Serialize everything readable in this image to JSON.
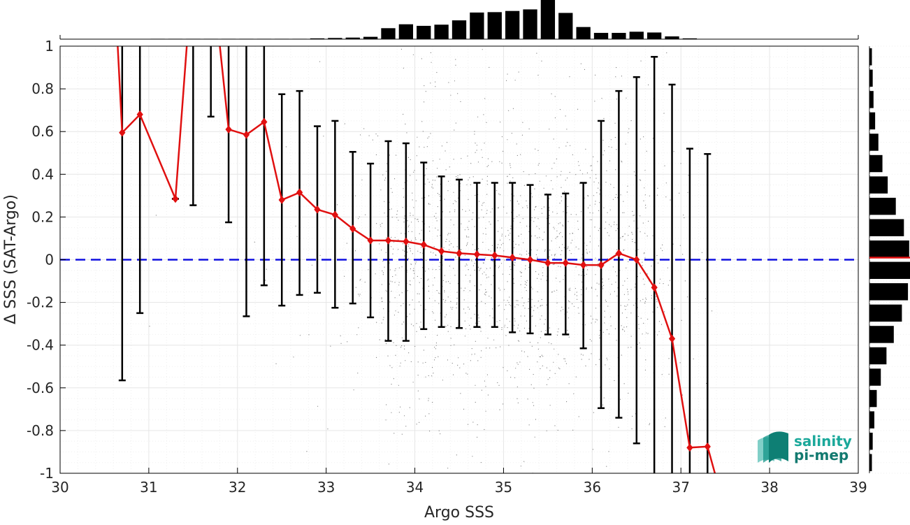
{
  "chart_data": {
    "type": "scatter",
    "title": "",
    "xlabel": "Argo SSS",
    "ylabel": "Δ SSS (SAT-Argo)",
    "xlim": [
      30,
      39
    ],
    "ylim": [
      -1,
      1
    ],
    "x_ticks": [
      "30",
      "31",
      "32",
      "33",
      "34",
      "35",
      "36",
      "37",
      "38",
      "39"
    ],
    "y_ticks": [
      "1",
      "0.8",
      "0.6",
      "0.4",
      "0.2",
      "0",
      "-0.2",
      "-0.4",
      "-0.6",
      "-0.8",
      "-1"
    ],
    "grid": true,
    "zero_line": {
      "y": 0,
      "color": "#1010e0",
      "style": "dashed"
    },
    "scatter_color": "#808080",
    "scatter_density_profile": {
      "x": [
        31.0,
        32.0,
        32.5,
        33.0,
        33.5,
        33.7,
        34.0,
        35.0,
        35.5,
        36.0,
        36.5,
        36.8,
        37.0,
        37.5
      ],
      "relative_density": [
        0.003,
        0.006,
        0.02,
        0.05,
        0.12,
        0.85,
        1.0,
        1.0,
        1.0,
        0.85,
        0.7,
        0.3,
        0.1,
        0.0
      ]
    },
    "series": [
      {
        "name": "",
        "color": "#e01010",
        "marker": "diamond",
        "x": [
          30.7,
          30.9,
          31.3,
          31.9,
          32.1,
          32.3,
          32.5,
          32.7,
          32.9,
          33.1,
          33.3,
          33.5,
          33.7,
          33.9,
          34.1,
          34.3,
          34.5,
          34.7,
          34.9,
          35.1,
          35.3,
          35.5,
          35.7,
          35.9,
          36.1,
          36.3,
          36.5,
          36.7,
          36.9,
          37.1,
          37.3
        ],
        "y": [
          0.595,
          0.68,
          0.285,
          0.61,
          0.585,
          0.645,
          0.28,
          0.315,
          0.235,
          0.21,
          0.145,
          0.09,
          0.09,
          0.085,
          0.07,
          0.04,
          0.03,
          0.025,
          0.02,
          0.01,
          0.0,
          -0.015,
          -0.015,
          -0.025,
          -0.025,
          0.03,
          0.0,
          -0.13,
          -0.37,
          -0.88,
          -0.875
        ],
        "line_only": [
          {
            "x": 30.6,
            "y": 1.4
          },
          {
            "x": 31.5,
            "y": 1.4
          },
          {
            "x": 31.7,
            "y": 1.4
          },
          {
            "x": 37.45,
            "y": -1.1
          }
        ]
      }
    ],
    "error_bars": {
      "color": "#000000",
      "x": [
        30.7,
        30.9,
        31.3,
        31.5,
        31.7,
        31.9,
        32.1,
        32.3,
        32.5,
        32.7,
        32.9,
        33.1,
        33.3,
        33.5,
        33.7,
        33.9,
        34.1,
        34.3,
        34.5,
        34.7,
        34.9,
        35.1,
        35.3,
        35.5,
        35.7,
        35.9,
        36.1,
        36.3,
        36.5,
        36.7,
        36.9,
        37.1,
        37.3
      ],
      "low": [
        -0.565,
        -0.25,
        0.285,
        0.255,
        0.67,
        0.175,
        -0.265,
        -0.12,
        -0.215,
        -0.165,
        -0.155,
        -0.225,
        -0.205,
        -0.27,
        -0.38,
        -0.38,
        -0.325,
        -0.315,
        -0.32,
        -0.315,
        -0.315,
        -0.34,
        -0.345,
        -0.35,
        -0.35,
        -0.415,
        -0.695,
        -0.74,
        -0.86,
        -1.1,
        -1.1,
        -1.1,
        -1.1
      ],
      "high": [
        1.1,
        1.1,
        0.285,
        1.1,
        1.1,
        1.1,
        1.1,
        1.1,
        0.775,
        0.79,
        0.625,
        0.65,
        0.505,
        0.45,
        0.555,
        0.545,
        0.455,
        0.39,
        0.375,
        0.36,
        0.36,
        0.36,
        0.35,
        0.305,
        0.31,
        0.36,
        0.65,
        0.79,
        0.855,
        0.95,
        0.82,
        0.52,
        0.495
      ]
    },
    "x_histogram": {
      "color": "#000000",
      "bin_centers": [
        31.1,
        31.3,
        31.5,
        31.7,
        31.9,
        32.1,
        32.3,
        32.5,
        32.7,
        32.9,
        33.1,
        33.3,
        33.5,
        33.7,
        33.9,
        34.1,
        34.3,
        34.5,
        34.7,
        34.9,
        35.1,
        35.3,
        35.5,
        35.7,
        35.9,
        36.1,
        36.3,
        36.5,
        36.7,
        36.9,
        37.1
      ],
      "relative_counts": [
        0.01,
        0.01,
        0.01,
        0.01,
        0.01,
        0.01,
        0.01,
        0.01,
        0.01,
        0.02,
        0.03,
        0.04,
        0.06,
        0.28,
        0.38,
        0.34,
        0.37,
        0.48,
        0.68,
        0.69,
        0.72,
        0.76,
        1.0,
        0.67,
        0.31,
        0.16,
        0.16,
        0.19,
        0.17,
        0.07,
        0.02
      ]
    },
    "y_histogram": {
      "color": "#000000",
      "median_line_color": "#e01010",
      "bin_centers": [
        0.95,
        0.85,
        0.75,
        0.65,
        0.55,
        0.45,
        0.35,
        0.25,
        0.15,
        0.05,
        -0.05,
        -0.15,
        -0.25,
        -0.35,
        -0.45,
        -0.55,
        -0.65,
        -0.75,
        -0.85,
        -0.95
      ],
      "relative_counts": [
        0.06,
        0.08,
        0.1,
        0.14,
        0.22,
        0.32,
        0.45,
        0.65,
        0.85,
        0.98,
        1.0,
        0.95,
        0.8,
        0.6,
        0.42,
        0.28,
        0.18,
        0.12,
        0.08,
        0.06
      ]
    }
  },
  "logo": {
    "line1": "salinity",
    "line2": "pi-mep",
    "color": "#1aa89a"
  }
}
